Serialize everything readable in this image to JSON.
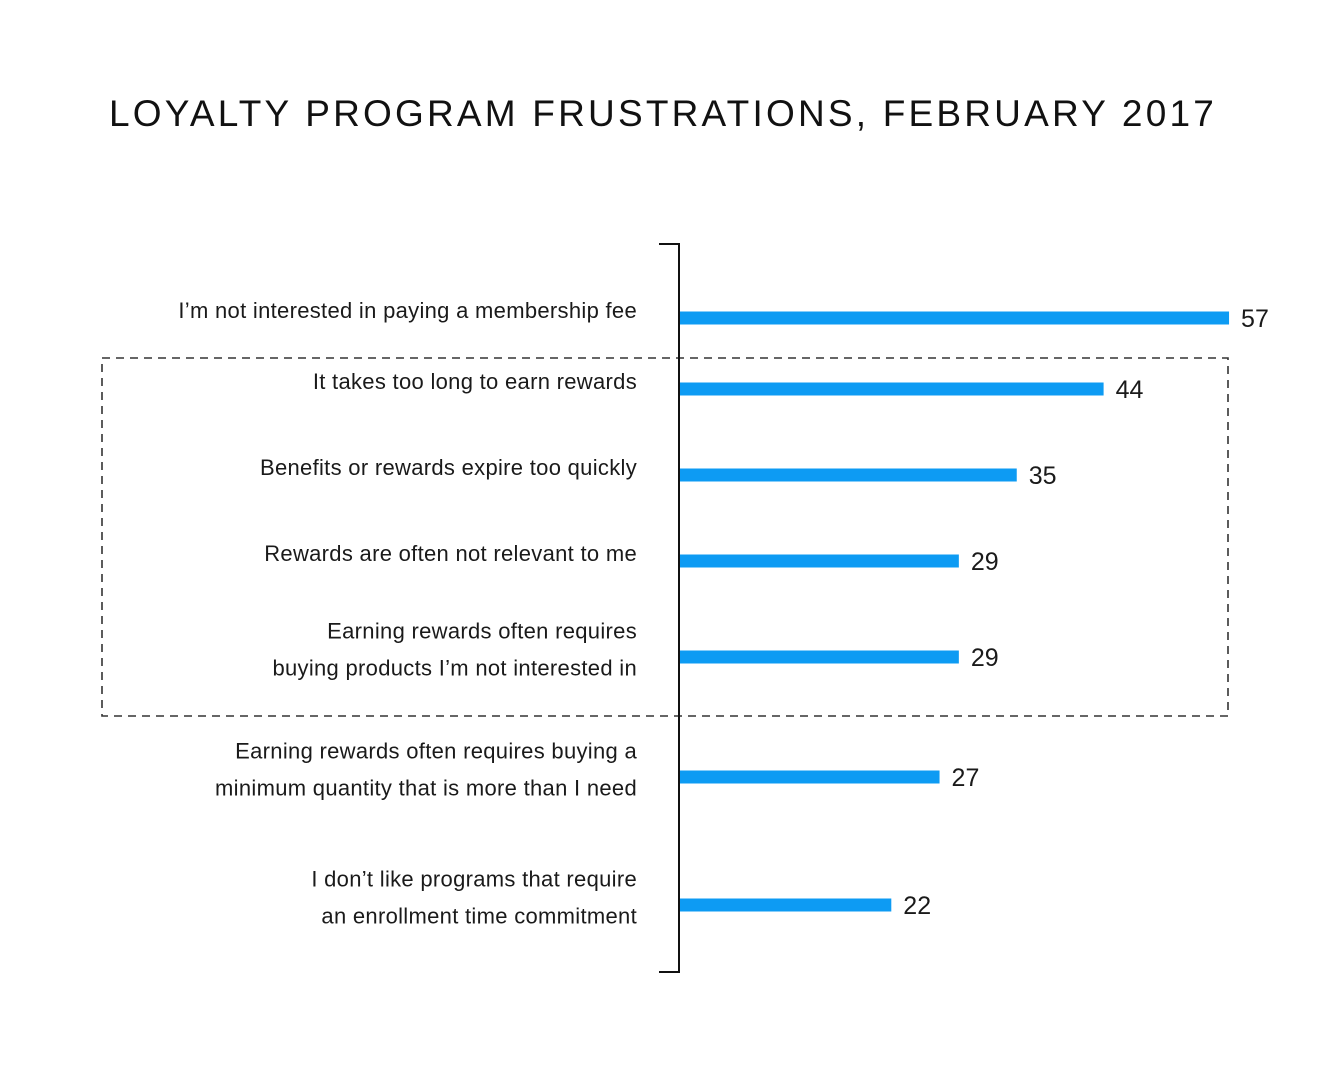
{
  "chart_data": {
    "type": "bar",
    "orientation": "horizontal",
    "title": "LOYALTY PROGRAM FRUSTRATIONS, FEBRUARY 2017",
    "categories": [
      [
        "I’m not interested in paying a membership fee"
      ],
      [
        "It takes too long to earn rewards"
      ],
      [
        "Benefits or rewards expire too quickly"
      ],
      [
        "Rewards are often not relevant to me"
      ],
      [
        "Earning rewards often requires",
        "buying products I’m not interested in"
      ],
      [
        "Earning rewards often requires buying a",
        "minimum quantity that is more than I need"
      ],
      [
        "I don’t like programs that require",
        "an enrollment time commitment"
      ]
    ],
    "values": [
      57,
      44,
      35,
      29,
      29,
      27,
      22
    ],
    "value_labels": [
      "57",
      "44",
      "35",
      "29",
      "29",
      "27",
      "22"
    ],
    "highlight_group": [
      1,
      2,
      3,
      4
    ],
    "bar_color": "#0d9bf3",
    "axis_color": "#111111",
    "highlight_border_color": "#333333",
    "grid": false,
    "legend": false
  }
}
